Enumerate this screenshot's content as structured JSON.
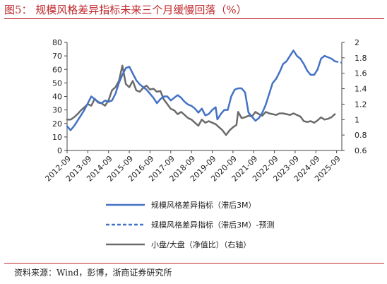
{
  "title": "图5：  规模风格差异指标未来三个月缓慢回落（%）",
  "source": "资料来源：Wind，彭博，浙商证券研究所",
  "colors": {
    "title": "#c0282c",
    "series_blue": "#4472c4",
    "series_gray": "#6b6b6b"
  },
  "chart_data": {
    "type": "line",
    "title": "规模风格差异指标未来三个月缓慢回落（%）",
    "x_ticks": [
      "2012-09",
      "2013-09",
      "2014-09",
      "2015-09",
      "2016-09",
      "2017-09",
      "2018-09",
      "2019-09",
      "2020-09",
      "2021-09",
      "2022-09",
      "2023-09",
      "2024-09",
      "2025-09"
    ],
    "x_range": [
      "2012-09",
      "2025-12"
    ],
    "y_left": {
      "lim": [
        0,
        80
      ],
      "ticks": [
        "0",
        "10",
        "20",
        "30",
        "40",
        "50",
        "60",
        "70",
        "80"
      ]
    },
    "y_right": {
      "lim": [
        0.6,
        2.0
      ],
      "ticks": [
        "0.6",
        "0.8",
        "1",
        "1.2",
        "1.4",
        "1.6",
        "1.8",
        "2"
      ]
    },
    "legend": [
      "规模风格差异指标（滞后3M）",
      "规模风格差异指标（滞后3M）-预测",
      "小盘/大盘（净值比）（右轴）"
    ],
    "series": [
      {
        "name": "规模风格差异指标（滞后3M）",
        "axis": "left",
        "color": "#4472c4",
        "points": [
          [
            "2012-09",
            18
          ],
          [
            "2012-11",
            15
          ],
          [
            "2013-01",
            18
          ],
          [
            "2013-03",
            22
          ],
          [
            "2013-05",
            26
          ],
          [
            "2013-07",
            30
          ],
          [
            "2013-09",
            35
          ],
          [
            "2013-11",
            40
          ],
          [
            "2014-01",
            38
          ],
          [
            "2014-03",
            36
          ],
          [
            "2014-05",
            35
          ],
          [
            "2014-07",
            37
          ],
          [
            "2014-09",
            36
          ],
          [
            "2014-11",
            37
          ],
          [
            "2015-01",
            42
          ],
          [
            "2015-03",
            50
          ],
          [
            "2015-05",
            56
          ],
          [
            "2015-07",
            61
          ],
          [
            "2015-09",
            62
          ],
          [
            "2015-11",
            57
          ],
          [
            "2016-01",
            52
          ],
          [
            "2016-03",
            49
          ],
          [
            "2016-05",
            47
          ],
          [
            "2016-07",
            45
          ],
          [
            "2016-09",
            42
          ],
          [
            "2016-11",
            39
          ],
          [
            "2017-01",
            35
          ],
          [
            "2017-03",
            38
          ],
          [
            "2017-05",
            40
          ],
          [
            "2017-07",
            40
          ],
          [
            "2017-09",
            37
          ],
          [
            "2017-11",
            39
          ],
          [
            "2018-01",
            41
          ],
          [
            "2018-03",
            39
          ],
          [
            "2018-05",
            36
          ],
          [
            "2018-07",
            34
          ],
          [
            "2018-09",
            33
          ],
          [
            "2018-11",
            31
          ],
          [
            "2019-01",
            28
          ],
          [
            "2019-03",
            31
          ],
          [
            "2019-05",
            26
          ],
          [
            "2019-07",
            27
          ],
          [
            "2019-09",
            30
          ],
          [
            "2019-11",
            32
          ],
          [
            "2019-12",
            23
          ],
          [
            "2020-02",
            27
          ],
          [
            "2020-04",
            30
          ],
          [
            "2020-06",
            30
          ],
          [
            "2020-07",
            35
          ],
          [
            "2020-08",
            40
          ],
          [
            "2020-10",
            45
          ],
          [
            "2020-12",
            46
          ],
          [
            "2021-02",
            46
          ],
          [
            "2021-04",
            43
          ],
          [
            "2021-06",
            28
          ],
          [
            "2021-08",
            25
          ],
          [
            "2021-10",
            22
          ],
          [
            "2021-12",
            24
          ],
          [
            "2022-02",
            28
          ],
          [
            "2022-04",
            34
          ],
          [
            "2022-06",
            42
          ],
          [
            "2022-08",
            50
          ],
          [
            "2022-10",
            53
          ],
          [
            "2022-12",
            58
          ],
          [
            "2023-02",
            64
          ],
          [
            "2023-04",
            66
          ],
          [
            "2023-06",
            70
          ],
          [
            "2023-08",
            74
          ],
          [
            "2023-10",
            70
          ],
          [
            "2023-12",
            68
          ],
          [
            "2024-02",
            64
          ],
          [
            "2024-04",
            59
          ],
          [
            "2024-06",
            56
          ],
          [
            "2024-08",
            56
          ],
          [
            "2024-10",
            60
          ],
          [
            "2024-12",
            68
          ],
          [
            "2025-02",
            70
          ],
          [
            "2025-04",
            69
          ],
          [
            "2025-06",
            68
          ],
          [
            "2025-08",
            66
          ]
        ]
      },
      {
        "name": "规模风格差异指标（滞后3M）-预测",
        "axis": "left",
        "color": "#4472c4",
        "dashed": true,
        "points": [
          [
            "2025-08",
            66
          ],
          [
            "2025-10",
            65.5
          ],
          [
            "2025-12",
            65
          ]
        ]
      },
      {
        "name": "小盘/大盘（净值比）（右轴）",
        "axis": "right",
        "color": "#6b6b6b",
        "points": [
          [
            "2012-09",
            1.0
          ],
          [
            "2012-11",
            1.0
          ],
          [
            "2013-01",
            1.03
          ],
          [
            "2013-03",
            1.07
          ],
          [
            "2013-05",
            1.12
          ],
          [
            "2013-07",
            1.16
          ],
          [
            "2013-09",
            1.2
          ],
          [
            "2013-11",
            1.18
          ],
          [
            "2014-01",
            1.27
          ],
          [
            "2014-03",
            1.22
          ],
          [
            "2014-05",
            1.21
          ],
          [
            "2014-07",
            1.18
          ],
          [
            "2014-09",
            1.25
          ],
          [
            "2014-11",
            1.38
          ],
          [
            "2015-01",
            1.42
          ],
          [
            "2015-03",
            1.5
          ],
          [
            "2015-05",
            1.7
          ],
          [
            "2015-06",
            1.58
          ],
          [
            "2015-07",
            1.46
          ],
          [
            "2015-09",
            1.42
          ],
          [
            "2015-11",
            1.5
          ],
          [
            "2016-01",
            1.38
          ],
          [
            "2016-03",
            1.36
          ],
          [
            "2016-05",
            1.41
          ],
          [
            "2016-07",
            1.44
          ],
          [
            "2016-09",
            1.39
          ],
          [
            "2016-11",
            1.4
          ],
          [
            "2017-01",
            1.36
          ],
          [
            "2017-03",
            1.37
          ],
          [
            "2017-05",
            1.26
          ],
          [
            "2017-07",
            1.2
          ],
          [
            "2017-09",
            1.14
          ],
          [
            "2017-11",
            1.12
          ],
          [
            "2018-01",
            1.07
          ],
          [
            "2018-03",
            1.1
          ],
          [
            "2018-05",
            1.06
          ],
          [
            "2018-07",
            1.02
          ],
          [
            "2018-09",
            1.0
          ],
          [
            "2018-11",
            0.96
          ],
          [
            "2019-01",
            0.92
          ],
          [
            "2019-03",
            1.0
          ],
          [
            "2019-05",
            0.96
          ],
          [
            "2019-07",
            0.98
          ],
          [
            "2019-09",
            0.96
          ],
          [
            "2019-11",
            0.94
          ],
          [
            "2020-01",
            0.9
          ],
          [
            "2020-03",
            0.86
          ],
          [
            "2020-05",
            0.8
          ],
          [
            "2020-07",
            0.86
          ],
          [
            "2020-09",
            0.9
          ],
          [
            "2020-11",
            0.93
          ],
          [
            "2020-12",
            1.1
          ],
          [
            "2021-02",
            1.02
          ],
          [
            "2021-04",
            1.03
          ],
          [
            "2021-06",
            1.05
          ],
          [
            "2021-08",
            1.04
          ],
          [
            "2021-10",
            1.1
          ],
          [
            "2021-12",
            1.07
          ],
          [
            "2022-02",
            1.05
          ],
          [
            "2022-04",
            1.1
          ],
          [
            "2022-06",
            1.08
          ],
          [
            "2022-08",
            1.07
          ],
          [
            "2022-10",
            1.06
          ],
          [
            "2022-12",
            1.08
          ],
          [
            "2023-02",
            1.08
          ],
          [
            "2023-04",
            1.07
          ],
          [
            "2023-06",
            1.06
          ],
          [
            "2023-08",
            1.08
          ],
          [
            "2023-10",
            1.06
          ],
          [
            "2023-12",
            1.04
          ],
          [
            "2024-02",
            0.98
          ],
          [
            "2024-04",
            0.97
          ],
          [
            "2024-06",
            0.98
          ],
          [
            "2024-08",
            0.96
          ],
          [
            "2024-10",
            0.99
          ],
          [
            "2024-12",
            1.03
          ],
          [
            "2025-02",
            1.0
          ],
          [
            "2025-04",
            1.01
          ],
          [
            "2025-06",
            1.03
          ],
          [
            "2025-08",
            1.07
          ]
        ]
      }
    ]
  }
}
